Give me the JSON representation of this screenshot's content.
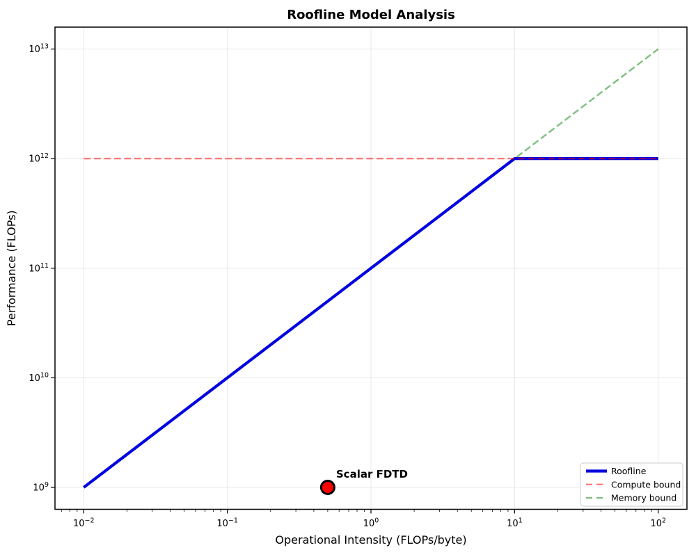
{
  "figure": {
    "background": "#ffffff"
  },
  "chart_data": {
    "type": "line",
    "title": "Roofline Model Analysis",
    "xlabel": "Operational Intensity (FLOPs/byte)",
    "ylabel": "Performance (FLOPs)",
    "xscale": "log",
    "yscale": "log",
    "xlim_log10": [
      -2.2,
      2.2
    ],
    "ylim_log10": [
      8.8,
      13.2
    ],
    "grid": true,
    "grid_color": "#e8e8e8",
    "spine_color": "#000000",
    "x_ticks": [
      {
        "value": 0.01,
        "base": "10",
        "exp": "−2"
      },
      {
        "value": 0.1,
        "base": "10",
        "exp": "−1"
      },
      {
        "value": 1,
        "base": "10",
        "exp": "0"
      },
      {
        "value": 10,
        "base": "10",
        "exp": "1"
      },
      {
        "value": 100,
        "base": "10",
        "exp": "2"
      }
    ],
    "y_ticks": [
      {
        "value": 1000000000.0,
        "base": "10",
        "exp": "9"
      },
      {
        "value": 10000000000.0,
        "base": "10",
        "exp": "10"
      },
      {
        "value": 100000000000.0,
        "base": "10",
        "exp": "11"
      },
      {
        "value": 1000000000000.0,
        "base": "10",
        "exp": "12"
      },
      {
        "value": 10000000000000.0,
        "base": "10",
        "exp": "13"
      }
    ],
    "series": [
      {
        "name": "Memory bound",
        "color": "rgba(0,128,0,0.5)",
        "width": 2.4,
        "dash": [
          10,
          4.5
        ],
        "points": [
          [
            0.01,
            1000000000.0
          ],
          [
            100,
            10000000000000.0
          ]
        ]
      },
      {
        "name": "Roofline",
        "color": "#0000e0",
        "width": 4.2,
        "dash": null,
        "points": [
          [
            0.01,
            1000000000.0
          ],
          [
            10,
            1000000000000.0
          ],
          [
            100,
            1000000000000.0
          ]
        ]
      },
      {
        "name": "Compute bound",
        "color": "rgba(255,0,0,0.5)",
        "width": 2.4,
        "dash": [
          10,
          4.5
        ],
        "points": [
          [
            0.01,
            1000000000000.0
          ],
          [
            100,
            1000000000000.0
          ]
        ]
      }
    ],
    "markers": [
      {
        "label": "Scalar FDTD",
        "x": 0.5,
        "y": 1000000000.0,
        "fill": "#ff0000",
        "edge": "#000000",
        "label_color": "#ff0000"
      }
    ],
    "legend": {
      "position": "lower right",
      "border_color": "#cccccc",
      "background": "rgba(255,255,255,0.9)",
      "entries": [
        "Roofline",
        "Compute bound",
        "Memory bound"
      ]
    }
  }
}
